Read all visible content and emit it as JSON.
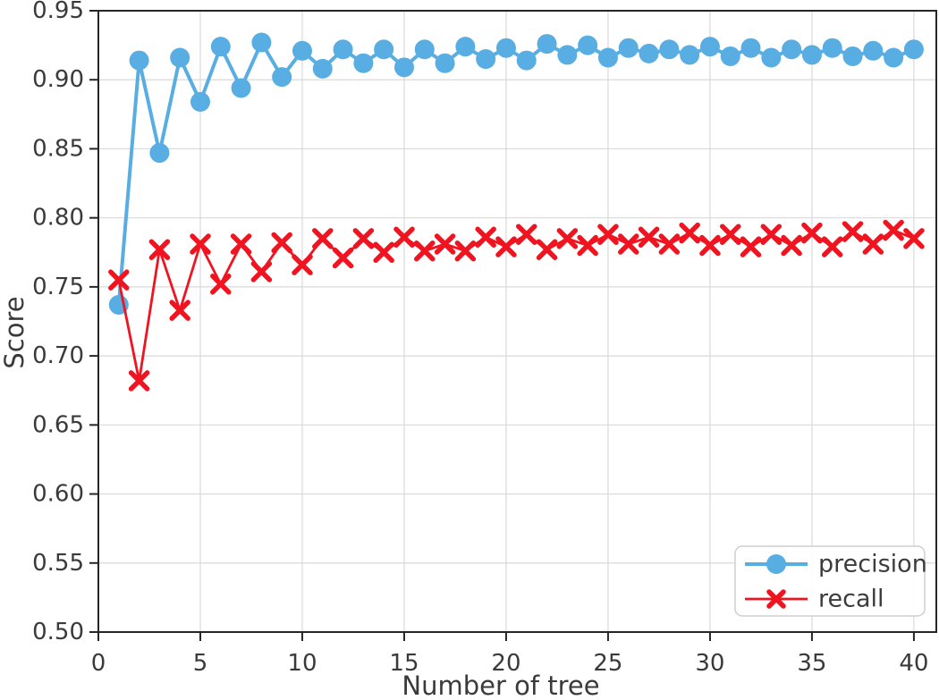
{
  "figure": {
    "background": "#ffffff"
  },
  "colors": {
    "precision": "#58ade2",
    "recall": "#ef1420",
    "grid": "#d9d9d9",
    "spine": "#262626",
    "tick_text": "#3a3a3a",
    "legend_border": "#cfcfcf",
    "legend_background": "#ffffff"
  },
  "chart_data": {
    "type": "line",
    "title": "",
    "xlabel": "Number of tree",
    "ylabel": "Score",
    "xlim": [
      0,
      41.1
    ],
    "ylim": [
      0.5,
      0.95
    ],
    "xticks": [
      0,
      5,
      10,
      15,
      20,
      25,
      30,
      35,
      40
    ],
    "yticks": [
      0.5,
      0.55,
      0.6,
      0.65,
      0.7,
      0.75,
      0.8,
      0.85,
      0.9,
      0.95
    ],
    "grid": true,
    "legend_position": "lower right",
    "x": [
      1,
      2,
      3,
      4,
      5,
      6,
      7,
      8,
      9,
      10,
      11,
      12,
      13,
      14,
      15,
      16,
      17,
      18,
      19,
      20,
      21,
      22,
      23,
      24,
      25,
      26,
      27,
      28,
      29,
      30,
      31,
      32,
      33,
      34,
      35,
      36,
      37,
      38,
      39,
      40
    ],
    "series": [
      {
        "name": "precision",
        "marker": "circle",
        "color": "#58ade2",
        "values": [
          0.737,
          0.914,
          0.847,
          0.916,
          0.884,
          0.924,
          0.894,
          0.927,
          0.902,
          0.921,
          0.908,
          0.922,
          0.912,
          0.922,
          0.909,
          0.922,
          0.912,
          0.924,
          0.915,
          0.923,
          0.914,
          0.926,
          0.918,
          0.925,
          0.916,
          0.923,
          0.919,
          0.922,
          0.918,
          0.924,
          0.917,
          0.923,
          0.916,
          0.922,
          0.918,
          0.923,
          0.917,
          0.921,
          0.916,
          0.922
        ]
      },
      {
        "name": "recall",
        "marker": "x",
        "color": "#ef1420",
        "values": [
          0.755,
          0.682,
          0.777,
          0.733,
          0.781,
          0.752,
          0.781,
          0.761,
          0.782,
          0.766,
          0.785,
          0.771,
          0.785,
          0.775,
          0.786,
          0.776,
          0.781,
          0.776,
          0.786,
          0.779,
          0.788,
          0.777,
          0.785,
          0.78,
          0.788,
          0.781,
          0.786,
          0.781,
          0.789,
          0.78,
          0.788,
          0.779,
          0.788,
          0.78,
          0.789,
          0.779,
          0.79,
          0.781,
          0.791,
          0.785
        ]
      }
    ]
  },
  "legend": {
    "entries": [
      {
        "label": "precision"
      },
      {
        "label": "recall"
      }
    ]
  }
}
